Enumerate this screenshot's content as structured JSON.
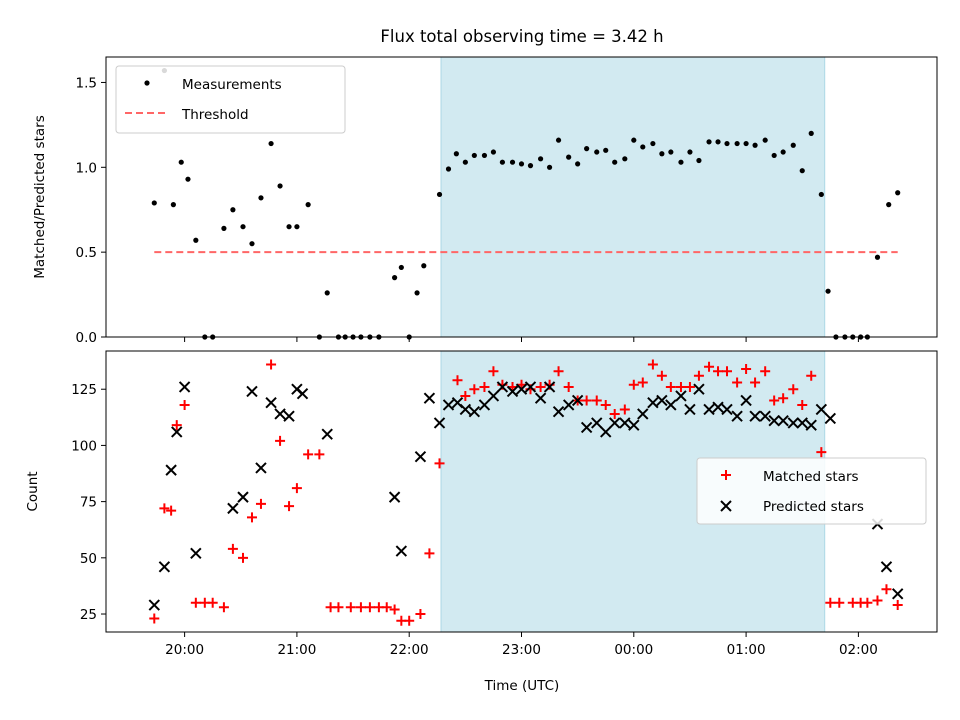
{
  "title": "Flux total observing time = 3.42 h",
  "colors": {
    "shade": "#add8e6",
    "threshold": "#ff6666",
    "matched": "#ff0000",
    "predicted": "#000000",
    "measurements": "#000000"
  },
  "chart_data": [
    {
      "type": "scatter",
      "ylabel": "Matched/Predicted stars",
      "xlim": [
        19.3,
        26.7
      ],
      "ylim": [
        0,
        1.65
      ],
      "yticks": [
        0.0,
        0.5,
        1.0,
        1.5
      ],
      "ytick_labels": [
        "0.0",
        "0.5",
        "1.0",
        "1.5"
      ],
      "legend_position": "top-left",
      "shaded_interval": [
        "22:17",
        "25:42"
      ],
      "series": [
        {
          "name": "Measurements",
          "x": [
            19.73,
            19.82,
            19.9,
            19.97,
            20.03,
            20.1,
            20.18,
            20.25,
            20.35,
            20.43,
            20.52,
            20.6,
            20.68,
            20.77,
            20.85,
            20.93,
            21.0,
            21.1,
            21.2,
            21.27,
            21.37,
            21.43,
            21.5,
            21.57,
            21.65,
            21.73,
            21.87,
            21.93,
            22.0,
            22.07,
            22.13,
            22.27,
            22.35,
            22.42,
            22.5,
            22.58,
            22.67,
            22.75,
            22.83,
            22.92,
            23.0,
            23.08,
            23.17,
            23.25,
            23.33,
            23.42,
            23.5,
            23.58,
            23.67,
            23.75,
            23.83,
            23.92,
            24.0,
            24.08,
            24.17,
            24.25,
            24.33,
            24.42,
            24.5,
            24.58,
            24.67,
            24.75,
            24.83,
            24.92,
            25.0,
            25.08,
            25.17,
            25.25,
            25.33,
            25.42,
            25.5,
            25.58,
            25.67,
            25.73,
            25.8,
            25.88,
            25.95,
            26.02,
            26.08,
            26.17,
            26.27,
            26.35
          ],
          "y": [
            0.79,
            1.57,
            0.78,
            1.03,
            0.93,
            0.57,
            0.0,
            0.0,
            0.64,
            0.75,
            0.65,
            0.55,
            0.82,
            1.14,
            0.89,
            0.65,
            0.65,
            0.78,
            0.0,
            0.26,
            0.0,
            0.0,
            0.0,
            0.0,
            0.0,
            0.0,
            0.35,
            0.41,
            0.0,
            0.26,
            0.42,
            0.84,
            0.99,
            1.08,
            1.03,
            1.07,
            1.07,
            1.09,
            1.03,
            1.03,
            1.02,
            1.01,
            1.05,
            1.0,
            1.16,
            1.06,
            1.02,
            1.11,
            1.09,
            1.1,
            1.03,
            1.05,
            1.16,
            1.12,
            1.14,
            1.08,
            1.09,
            1.03,
            1.09,
            1.04,
            1.15,
            1.15,
            1.14,
            1.14,
            1.14,
            1.13,
            1.16,
            1.07,
            1.09,
            1.13,
            0.98,
            1.2,
            0.84,
            0.27,
            0.0,
            0.0,
            0.0,
            0.0,
            0.0,
            0.47,
            0.78,
            0.85
          ]
        },
        {
          "name": "Threshold",
          "x": [
            19.73,
            26.35
          ],
          "y": [
            0.5,
            0.5
          ]
        }
      ]
    },
    {
      "type": "scatter",
      "xlabel": "Time (UTC)",
      "ylabel": "Count",
      "xlim": [
        19.3,
        26.7
      ],
      "ylim": [
        17,
        142
      ],
      "yticks": [
        25,
        50,
        75,
        100,
        125
      ],
      "ytick_labels": [
        "25",
        "50",
        "75",
        "100",
        "125"
      ],
      "xticks": [
        20,
        21,
        22,
        23,
        24,
        25,
        26
      ],
      "xtick_labels": [
        "20:00",
        "21:00",
        "22:00",
        "23:00",
        "00:00",
        "01:00",
        "02:00"
      ],
      "legend_position": "center-right",
      "shaded_interval": [
        "22:17",
        "25:42"
      ],
      "series": [
        {
          "name": "Matched stars",
          "x": [
            19.73,
            19.82,
            19.88,
            19.93,
            20.0,
            20.1,
            20.18,
            20.25,
            20.35,
            20.43,
            20.52,
            20.6,
            20.68,
            20.77,
            20.85,
            20.93,
            21.0,
            21.1,
            21.2,
            21.3,
            21.37,
            21.48,
            21.57,
            21.65,
            21.73,
            21.8,
            21.87,
            21.93,
            22.0,
            22.1,
            22.18,
            22.27,
            22.43,
            22.5,
            22.58,
            22.67,
            22.75,
            22.83,
            22.92,
            23.0,
            23.08,
            23.17,
            23.25,
            23.33,
            23.42,
            23.5,
            23.58,
            23.67,
            23.75,
            23.83,
            23.92,
            24.0,
            24.08,
            24.17,
            24.25,
            24.33,
            24.42,
            24.5,
            24.58,
            24.67,
            24.75,
            24.83,
            24.92,
            25.0,
            25.08,
            25.17,
            25.25,
            25.33,
            25.42,
            25.5,
            25.58,
            25.67,
            25.75,
            25.83,
            25.95,
            26.02,
            26.08,
            26.17,
            26.25,
            26.35
          ],
          "y": [
            23,
            72,
            71,
            109,
            118,
            30,
            30,
            30,
            28,
            54,
            50,
            68,
            74,
            136,
            102,
            73,
            81,
            96,
            96,
            28,
            28,
            28,
            28,
            28,
            28,
            28,
            27,
            22,
            22,
            25,
            52,
            92,
            129,
            122,
            125,
            126,
            133,
            127,
            126,
            127,
            125,
            126,
            127,
            133,
            126,
            120,
            120,
            120,
            118,
            114,
            116,
            127,
            128,
            136,
            131,
            126,
            126,
            126,
            131,
            135,
            133,
            133,
            128,
            134,
            128,
            133,
            120,
            121,
            125,
            118,
            131,
            97,
            30,
            30,
            30,
            30,
            30,
            31,
            36,
            29
          ]
        },
        {
          "name": "Predicted stars",
          "x": [
            19.73,
            19.82,
            19.88,
            19.93,
            20.0,
            20.1,
            20.43,
            20.52,
            20.6,
            20.68,
            20.77,
            20.85,
            20.93,
            21.0,
            21.05,
            21.27,
            21.87,
            21.93,
            22.1,
            22.18,
            22.27,
            22.35,
            22.43,
            22.5,
            22.58,
            22.67,
            22.75,
            22.83,
            22.92,
            23.0,
            23.08,
            23.17,
            23.25,
            23.33,
            23.42,
            23.5,
            23.58,
            23.67,
            23.75,
            23.83,
            23.92,
            24.0,
            24.08,
            24.17,
            24.25,
            24.33,
            24.42,
            24.5,
            24.58,
            24.67,
            24.75,
            24.83,
            24.92,
            25.0,
            25.08,
            25.17,
            25.25,
            25.33,
            25.42,
            25.5,
            25.58,
            25.67,
            25.75,
            26.17,
            26.25,
            26.35
          ],
          "y": [
            29,
            46,
            89,
            106,
            126,
            52,
            72,
            77,
            124,
            90,
            119,
            114,
            113,
            125,
            123,
            105,
            77,
            53,
            95,
            121,
            110,
            118,
            119,
            116,
            115,
            118,
            122,
            126,
            124,
            125,
            126,
            121,
            126,
            115,
            118,
            120,
            108,
            110,
            106,
            110,
            110,
            109,
            114,
            119,
            120,
            118,
            122,
            116,
            125,
            116,
            117,
            116,
            113,
            120,
            113,
            113,
            111,
            111,
            110,
            110,
            109,
            116,
            112,
            65,
            46,
            34
          ]
        }
      ]
    }
  ]
}
